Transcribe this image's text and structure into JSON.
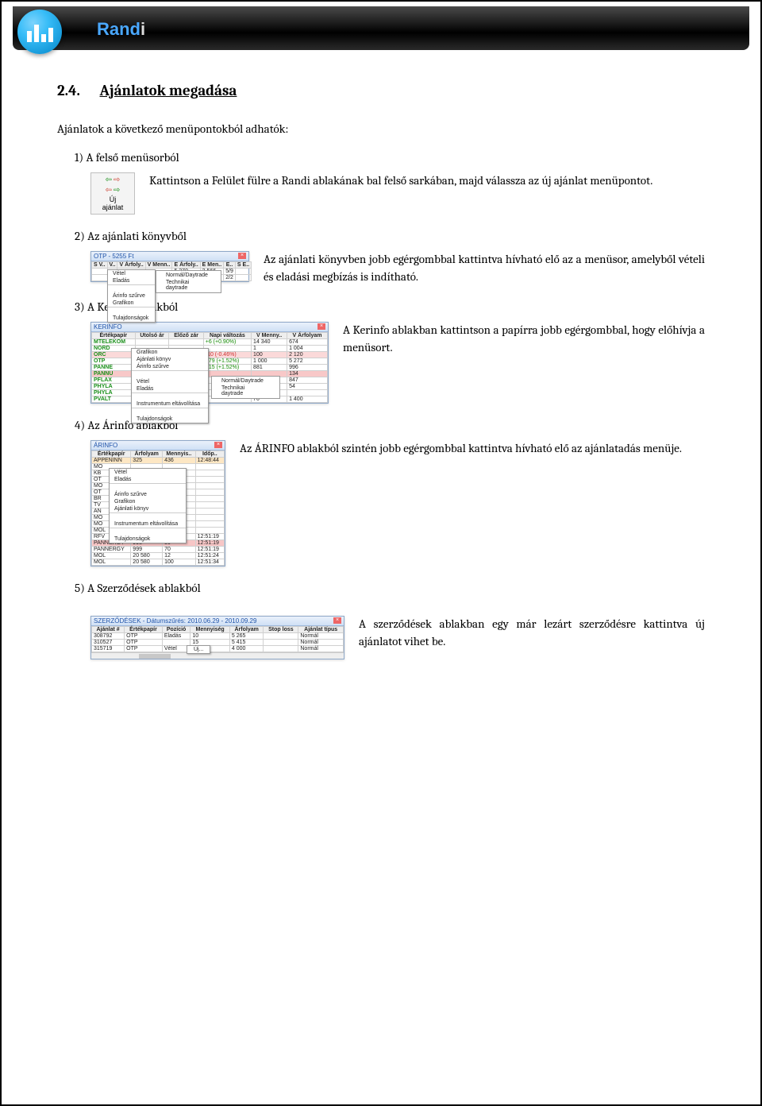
{
  "header": {
    "brand_part1": "Rand",
    "brand_part2": "i",
    "brand_color1": "#4aa8ff",
    "brand_color2": "#dddddd"
  },
  "section": {
    "number": "2.4.",
    "title": "Ajánlatok megadása",
    "lead": "Ajánlatok a következő menüpontokból adhatók:"
  },
  "items": [
    {
      "label": "1)  A felső menüsorból",
      "text": "Kattintson a Felület fülre a Randi ablakának bal felső sarkában, majd válassza az új ajánlat menüpontot.",
      "thumb": {
        "type": "uj_ajanlat",
        "line1": "Új",
        "line2": "ajánlat"
      }
    },
    {
      "label": "2)  Az ajánlati könyvből",
      "text": "Az ajánlati könyvben jobb egérgombbal kattintva hívható elő az a menüsor, amelyből vételi és eladási megbízás is indítható.",
      "thumb": {
        "type": "konyv",
        "title": "OTP - 5255 Ft",
        "cols": [
          "S V..",
          "V..",
          "V Árfoly..",
          "V Menn..",
          "E Árfoly..",
          "E Men..",
          "E..",
          "S E.."
        ],
        "ctx": [
          "Vétel",
          "Eladás",
          "",
          "Árinfo szűrve",
          "Grafikon",
          "",
          "Tulajdonságok"
        ],
        "sub": [
          "Normál/Daytrade",
          "Technikai daytrade"
        ],
        "rows": [
          [
            "",
            "",
            "",
            "",
            "5 270",
            "2 566",
            "5/9",
            ""
          ],
          [
            "",
            "",
            "",
            "",
            "5 271",
            "625",
            "2/2",
            ""
          ]
        ]
      }
    },
    {
      "label": "3)  A Kerinfo ablakból",
      "text": "A Kerinfo ablakban kattintson a papírra jobb egérgombbal, hogy előhívja a menüsort.",
      "thumb": {
        "type": "kerinfo",
        "title": "KERINFO",
        "cols": [
          "Értékpapír",
          "Utolsó ár",
          "Előző zár",
          "Napi változás",
          "V Menny..",
          "V Árfolyam"
        ],
        "rows": [
          {
            "t": "MTELEKOM",
            "u": "",
            "e": "",
            "d": "+6 (+0.90%)",
            "m": "14 340",
            "a": "674",
            "cls": "pos"
          },
          {
            "t": "NORD",
            "u": "",
            "e": "",
            "d": "",
            "m": "1",
            "a": "1 004",
            "cls": ""
          },
          {
            "t": "ORC",
            "u": "",
            "e": "",
            "d": "-10 (-0.46%)",
            "m": "100",
            "a": "2 120",
            "cls": "neg sel"
          },
          {
            "t": "OTP",
            "u": "",
            "e": "",
            "d": "+79 (+1.52%)",
            "m": "1 000",
            "a": "5 272",
            "cls": "pos"
          },
          {
            "t": "PANNE",
            "u": "",
            "e": "",
            "d": "+15 (+1.52%)",
            "m": "881",
            "a": "996",
            "cls": "pos"
          },
          {
            "t": "PANNU",
            "u": "",
            "e": "",
            "d": "",
            "m": "",
            "a": "134",
            "cls": "sel2"
          },
          {
            "t": "PFLAX",
            "u": "",
            "e": "",
            "d": "",
            "m": "",
            "a": "847",
            "cls": ""
          },
          {
            "t": "PHYLA",
            "u": "",
            "e": "",
            "d": "",
            "m": "",
            "a": "54",
            "cls": ""
          },
          {
            "t": "PHYLA",
            "u": "",
            "e": "",
            "d": "",
            "m": "",
            "a": "",
            "cls": ""
          },
          {
            "t": "PVALT",
            "u": "",
            "e": "",
            "d": "",
            "m": "70",
            "a": "1 400",
            "cls": ""
          }
        ],
        "ctx": [
          "Grafikon",
          "Ajánlati könyv",
          "Árinfo szűrve",
          "",
          "Vétel",
          "Eladás",
          "",
          "Instrumentum eltávolítása",
          "",
          "Tulajdonságok"
        ],
        "sub": [
          "Normál/Daytrade",
          "Technikai daytrade"
        ]
      }
    },
    {
      "label": "4)  Az Árinfo ablakból",
      "text": "Az ÁRINFO ablakból szintén jobb egérgombbal kattintva hívható elő az ajánlatadás menüje.",
      "thumb": {
        "type": "arinfo",
        "title": "ÁRINFO",
        "cols": [
          "Értékpapír",
          "Árfolyam",
          "Mennyis..",
          "Időp.."
        ],
        "rows": [
          {
            "t": "APPENINN",
            "a": "325",
            "m": "436",
            "i": "12:48:44",
            "cls": "hl2"
          },
          {
            "t": "MO",
            "a": "",
            "m": "",
            "i": "",
            "cls": ""
          },
          {
            "t": "KB",
            "a": "",
            "m": "",
            "i": "",
            "cls": ""
          },
          {
            "t": "OT",
            "a": "",
            "m": "",
            "i": "",
            "cls": ""
          },
          {
            "t": "MO",
            "a": "",
            "m": "",
            "i": "",
            "cls": ""
          },
          {
            "t": "OT",
            "a": "",
            "m": "",
            "i": "",
            "cls": ""
          },
          {
            "t": "BR",
            "a": "",
            "m": "",
            "i": "",
            "cls": ""
          },
          {
            "t": "TV",
            "a": "",
            "m": "",
            "i": "",
            "cls": ""
          },
          {
            "t": "AN",
            "a": "",
            "m": "",
            "i": "",
            "cls": ""
          },
          {
            "t": "MO",
            "a": "",
            "m": "",
            "i": "",
            "cls": ""
          },
          {
            "t": "MO",
            "a": "",
            "m": "",
            "i": "",
            "cls": ""
          },
          {
            "t": "MOL",
            "a": "20 580",
            "m": "",
            "i": "",
            "cls": ""
          },
          {
            "t": "RFV",
            "a": "9 650",
            "m": "25",
            "i": "12:51:19",
            "cls": ""
          },
          {
            "t": "PANNERGY",
            "a": "998",
            "m": "50",
            "i": "12:51:19",
            "cls": "hl"
          },
          {
            "t": "PANNERGY",
            "a": "999",
            "m": "70",
            "i": "12:51:19",
            "cls": ""
          },
          {
            "t": "MOL",
            "a": "20 580",
            "m": "12",
            "i": "12:51:24",
            "cls": ""
          },
          {
            "t": "MOL",
            "a": "20 580",
            "m": "100",
            "i": "12:51:34",
            "cls": ""
          }
        ],
        "ctx": [
          "Vétel",
          "Eladás",
          "",
          "Árinfo szűrve",
          "Grafikon",
          "Ajánlati könyv",
          "",
          "Instrumentum eltávolítása",
          "",
          "Tulajdonságok"
        ]
      }
    },
    {
      "label": "5)  A Szerződések ablakból",
      "text": "A szerződések ablakban egy már lezárt szerződésre kattintva új ajánlatot vihet be.",
      "thumb": {
        "type": "szerz",
        "title": "SZERZŐDÉSEK - Dátumszűrés: 2010.06.29 - 2010.09.29",
        "cols": [
          "Ajánlat #",
          "Értékpapír",
          "Pozíció",
          "Mennyiség",
          "Árfolyam",
          "Stop loss",
          "Ajánlat típus"
        ],
        "rows": [
          [
            "308792",
            "OTP",
            "Eladás",
            "10",
            "5 265",
            "",
            "Normál"
          ],
          [
            "310527",
            "OTP",
            "",
            "15",
            "5 415",
            "",
            "Normál"
          ],
          [
            "315719",
            "OTP",
            "Vétel",
            "1",
            "4 000",
            "",
            "Normál"
          ]
        ],
        "ctx": "Új..."
      }
    }
  ]
}
